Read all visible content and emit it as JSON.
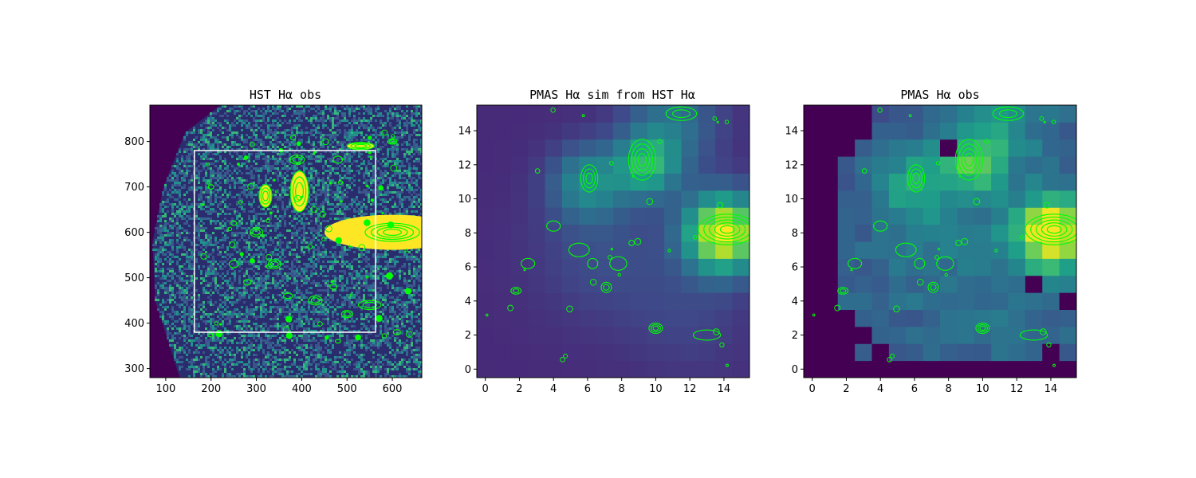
{
  "chart_data": [
    {
      "type": "heatmap",
      "title": "HST Hα obs",
      "xlim": [
        65,
        665
      ],
      "ylim": [
        280,
        880
      ],
      "xticks": [
        "100",
        "200",
        "300",
        "400",
        "500",
        "600"
      ],
      "yticks": [
        "300",
        "400",
        "500",
        "600",
        "700",
        "800"
      ],
      "colormap": "viridis",
      "contour_color": "#00ff00",
      "box_color": "#ffffff",
      "footprint_box": {
        "x0": 163,
        "x1": 563,
        "y0": 380,
        "y1": 780
      }
    },
    {
      "type": "heatmap",
      "title": "PMAS Hα sim from HST Hα",
      "xlim": [
        -0.5,
        15.5
      ],
      "ylim": [
        -0.5,
        15.5
      ],
      "xticks": [
        "0",
        "2",
        "4",
        "6",
        "8",
        "10",
        "12",
        "14"
      ],
      "yticks": [
        "0",
        "2",
        "4",
        "6",
        "8",
        "10",
        "12",
        "14"
      ],
      "colormap": "viridis",
      "contour_color": "#00ff00"
    },
    {
      "type": "heatmap",
      "title": "PMAS Hα obs",
      "xlim": [
        -0.5,
        15.5
      ],
      "ylim": [
        -0.5,
        15.5
      ],
      "xticks": [
        "0",
        "2",
        "4",
        "6",
        "8",
        "10",
        "12",
        "14"
      ],
      "yticks": [
        "0",
        "2",
        "4",
        "6",
        "8",
        "10",
        "12",
        "14"
      ],
      "colormap": "viridis",
      "contour_color": "#00ff00"
    }
  ]
}
